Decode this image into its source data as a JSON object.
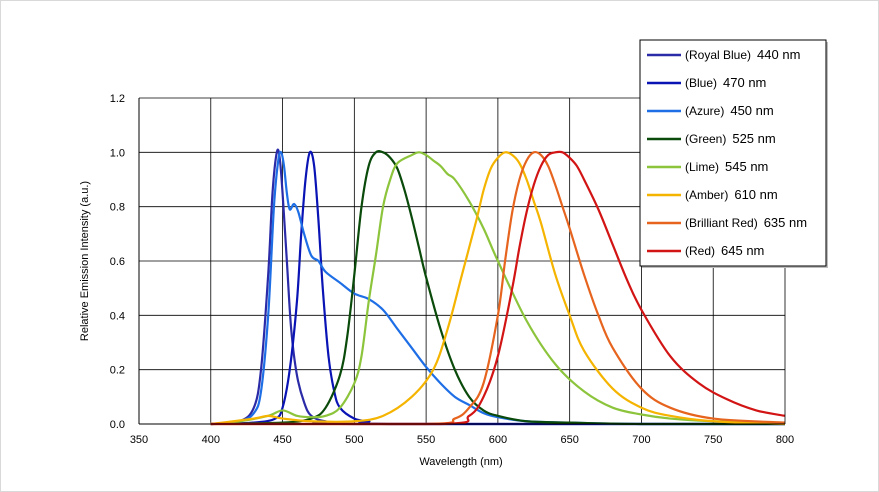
{
  "chart_data": {
    "type": "line",
    "title": "",
    "xlabel": "Wavelength (nm)",
    "ylabel": "Relative Emission Intensity (a.u.)",
    "xlim": [
      350,
      800
    ],
    "ylim": [
      0,
      1.2
    ],
    "xticks": [
      350,
      400,
      450,
      500,
      550,
      600,
      650,
      700,
      750,
      800
    ],
    "yticks": [
      0.0,
      0.2,
      0.4,
      0.6,
      0.8,
      1.0,
      1.2
    ],
    "ytick_labels": [
      "0.0",
      "0.2",
      "0.4",
      "0.6",
      "0.8",
      "1.0",
      "1.2"
    ],
    "grid": true,
    "legend_position": "top-right",
    "series": [
      {
        "name": "(Royal Blue)",
        "wavelength": "440 nm",
        "color": "#2b2ba8",
        "x": [
          400,
          420,
          430,
          435,
          440,
          443,
          446,
          448,
          450,
          453,
          456,
          460,
          465,
          470,
          480,
          500,
          800
        ],
        "y": [
          0.0,
          0.01,
          0.06,
          0.2,
          0.55,
          0.85,
          1.0,
          0.98,
          0.85,
          0.6,
          0.35,
          0.18,
          0.08,
          0.03,
          0.01,
          0.0,
          0.0
        ]
      },
      {
        "name": "(Blue)",
        "wavelength": "470 nm",
        "color": "#0a14b4",
        "x": [
          400,
          430,
          445,
          450,
          455,
          460,
          463,
          466,
          469,
          472,
          475,
          478,
          482,
          486,
          490,
          500,
          510,
          530,
          800
        ],
        "y": [
          0.0,
          0.005,
          0.02,
          0.06,
          0.2,
          0.45,
          0.7,
          0.9,
          1.0,
          0.95,
          0.75,
          0.5,
          0.25,
          0.12,
          0.06,
          0.02,
          0.01,
          0.0,
          0.0
        ]
      },
      {
        "name": "(Azure)",
        "wavelength": "450 nm",
        "color": "#1e6ee6",
        "x": [
          400,
          420,
          430,
          435,
          440,
          444,
          447,
          449,
          451,
          453,
          455,
          458,
          461,
          465,
          470,
          475,
          480,
          490,
          500,
          510,
          520,
          530,
          540,
          550,
          560,
          570,
          580,
          590,
          600,
          620,
          650,
          700,
          800
        ],
        "y": [
          0.0,
          0.01,
          0.04,
          0.12,
          0.4,
          0.8,
          0.97,
          1.0,
          0.95,
          0.85,
          0.79,
          0.81,
          0.78,
          0.7,
          0.62,
          0.6,
          0.56,
          0.52,
          0.48,
          0.46,
          0.42,
          0.35,
          0.28,
          0.21,
          0.15,
          0.1,
          0.07,
          0.04,
          0.025,
          0.01,
          0.005,
          0.0,
          0.0
        ]
      },
      {
        "name": "(Green)",
        "wavelength": "525 nm",
        "color": "#0a4a0a",
        "x": [
          400,
          450,
          470,
          480,
          490,
          495,
          500,
          505,
          510,
          515,
          520,
          525,
          530,
          535,
          540,
          545,
          550,
          560,
          570,
          580,
          590,
          600,
          620,
          650,
          700,
          800
        ],
        "y": [
          0.0,
          0.005,
          0.02,
          0.06,
          0.18,
          0.32,
          0.55,
          0.8,
          0.95,
          1.0,
          1.0,
          0.98,
          0.94,
          0.86,
          0.76,
          0.65,
          0.54,
          0.35,
          0.2,
          0.1,
          0.05,
          0.03,
          0.01,
          0.005,
          0.0,
          0.0
        ]
      },
      {
        "name": "(Lime)",
        "wavelength": "545 nm",
        "color": "#8cc43c",
        "x": [
          400,
          420,
          440,
          450,
          460,
          470,
          480,
          490,
          500,
          505,
          510,
          515,
          520,
          525,
          530,
          540,
          545,
          550,
          555,
          560,
          565,
          570,
          580,
          590,
          600,
          620,
          640,
          660,
          680,
          700,
          720,
          750,
          800
        ],
        "y": [
          0.0,
          0.01,
          0.03,
          0.05,
          0.03,
          0.025,
          0.03,
          0.06,
          0.15,
          0.25,
          0.45,
          0.62,
          0.8,
          0.9,
          0.96,
          0.99,
          1.0,
          0.99,
          0.97,
          0.95,
          0.92,
          0.9,
          0.82,
          0.72,
          0.6,
          0.38,
          0.22,
          0.12,
          0.06,
          0.035,
          0.02,
          0.01,
          0.005
        ]
      },
      {
        "name": "(Amber)",
        "wavelength": "610 nm",
        "color": "#f5b400",
        "x": [
          400,
          430,
          440,
          450,
          470,
          500,
          520,
          540,
          555,
          565,
          575,
          585,
          590,
          595,
          600,
          605,
          610,
          615,
          620,
          625,
          630,
          640,
          650,
          660,
          680,
          700,
          720,
          750,
          800
        ],
        "y": [
          0.0,
          0.02,
          0.03,
          0.02,
          0.01,
          0.01,
          0.03,
          0.1,
          0.2,
          0.35,
          0.55,
          0.75,
          0.86,
          0.94,
          0.98,
          1.0,
          0.99,
          0.96,
          0.9,
          0.82,
          0.74,
          0.55,
          0.4,
          0.27,
          0.13,
          0.06,
          0.03,
          0.01,
          0.0
        ]
      },
      {
        "name": "(Brilliant Red)",
        "wavelength": "635 nm",
        "color": "#e6641e",
        "x": [
          400,
          550,
          570,
          580,
          590,
          600,
          605,
          610,
          615,
          620,
          625,
          630,
          635,
          640,
          645,
          650,
          660,
          670,
          680,
          700,
          720,
          750,
          800
        ],
        "y": [
          0.0,
          0.0,
          0.02,
          0.06,
          0.15,
          0.4,
          0.6,
          0.78,
          0.9,
          0.97,
          1.0,
          0.99,
          0.95,
          0.88,
          0.8,
          0.72,
          0.55,
          0.4,
          0.28,
          0.13,
          0.06,
          0.02,
          0.005
        ]
      },
      {
        "name": "(Red)",
        "wavelength": "645 nm",
        "color": "#d21414",
        "x": [
          400,
          560,
          580,
          590,
          600,
          610,
          615,
          620,
          625,
          630,
          635,
          640,
          645,
          650,
          655,
          660,
          670,
          680,
          690,
          700,
          720,
          740,
          760,
          780,
          800
        ],
        "y": [
          0.0,
          0.0,
          0.03,
          0.1,
          0.25,
          0.5,
          0.65,
          0.78,
          0.88,
          0.95,
          0.99,
          1.0,
          1.0,
          0.98,
          0.95,
          0.9,
          0.79,
          0.66,
          0.53,
          0.42,
          0.25,
          0.15,
          0.09,
          0.05,
          0.03
        ]
      }
    ]
  }
}
